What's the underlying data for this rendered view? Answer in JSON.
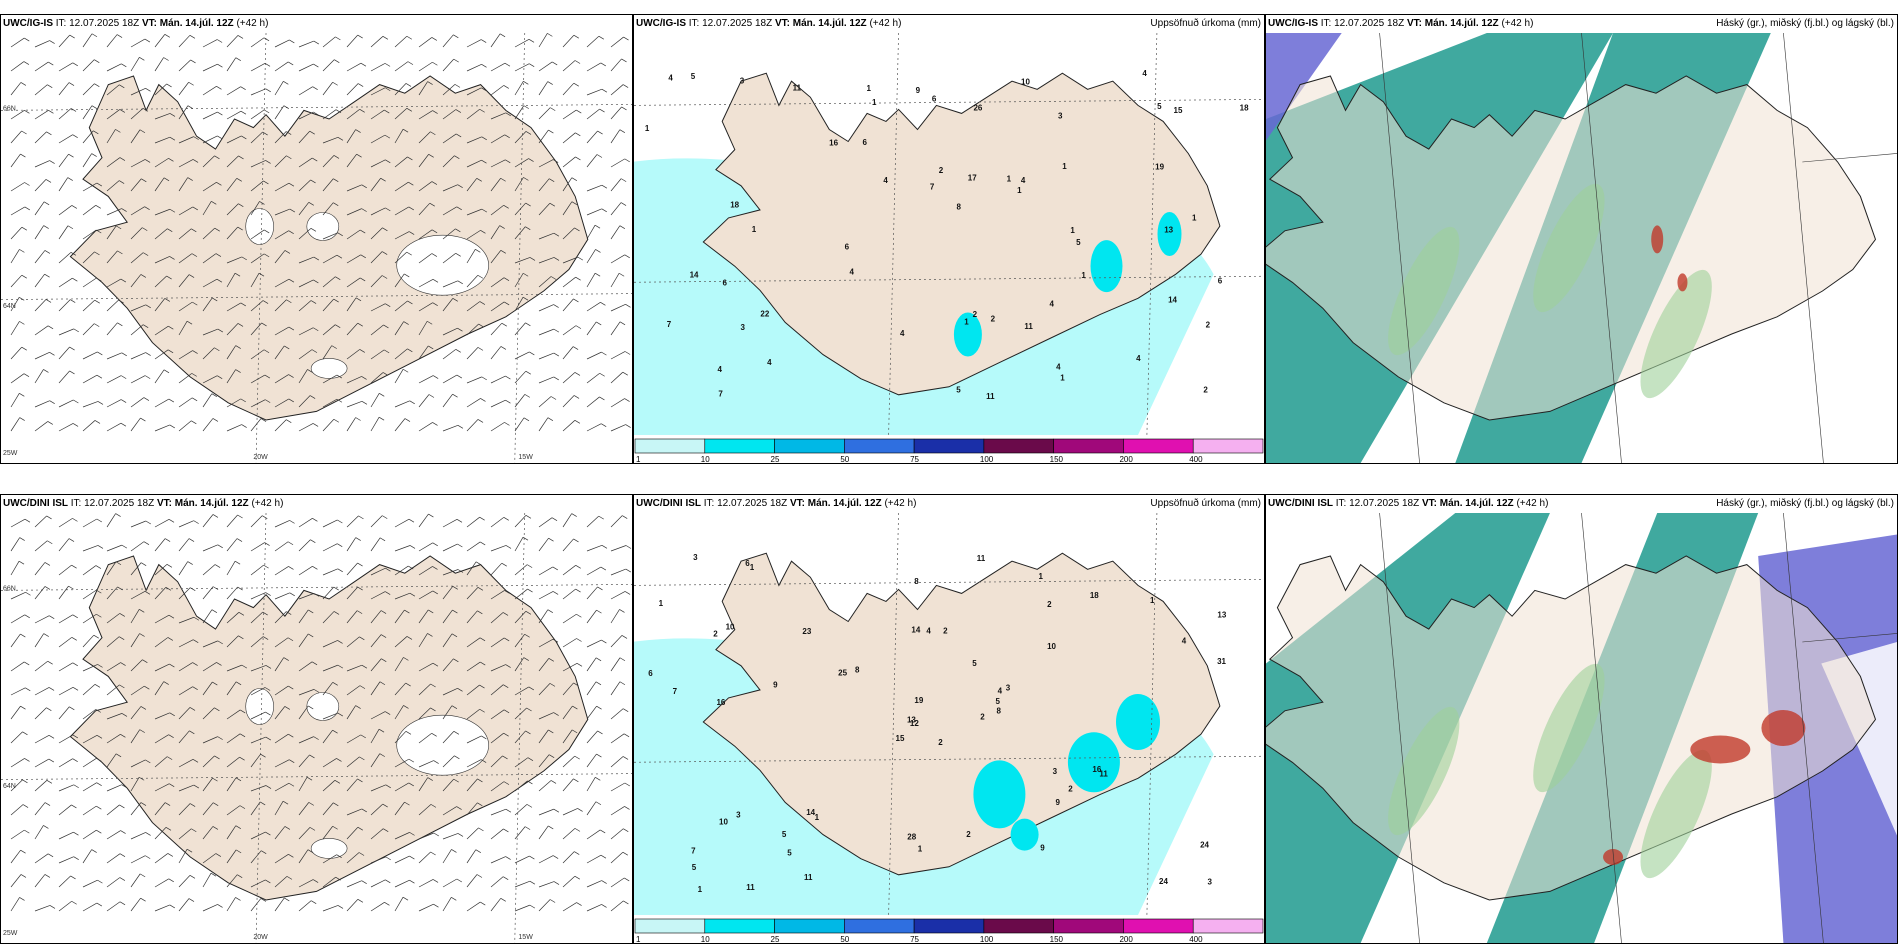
{
  "panels": [
    {
      "model": "UWC/IG-IS",
      "it": "IT: 12.07.2025 18Z",
      "vt": "VT: Mán. 14.júl. 12Z",
      "lead": "(+42 h)",
      "title": "",
      "type": "wind"
    },
    {
      "model": "UWC/IG-IS",
      "it": "IT: 12.07.2025 18Z",
      "vt": "VT: Mán. 14.júl. 12Z",
      "lead": "(+42 h)",
      "title": "Uppsöfnuð úrkoma (mm)",
      "type": "precip"
    },
    {
      "model": "UWC/IG-IS",
      "it": "IT: 12.07.2025 18Z",
      "vt": "VT: Mán. 14.júl. 12Z",
      "lead": "(+42 h)",
      "title": "Háský (gr.), miðský (fj.bl.) og lágský (bl.)",
      "type": "cloud"
    },
    {
      "model": "UWC/DINI ISL",
      "it": "IT: 12.07.2025 18Z",
      "vt": "VT: Mán. 14.júl. 12Z",
      "lead": "(+42 h)",
      "title": "",
      "type": "wind"
    },
    {
      "model": "UWC/DINI ISL",
      "it": "IT: 12.07.2025 18Z",
      "vt": "VT: Mán. 14.júl. 12Z",
      "lead": "(+42 h)",
      "title": "Uppsöfnuð úrkoma (mm)",
      "type": "precip"
    },
    {
      "model": "UWC/DINI ISL",
      "it": "IT: 12.07.2025 18Z",
      "vt": "VT: Mán. 14.júl. 12Z",
      "lead": "(+42 h)",
      "title": "Háský (gr.), miðský (fj.bl.) og lágský (bl.)",
      "type": "cloud"
    }
  ],
  "gridlabels": {
    "lon_20": "20W",
    "lon_15": "15W",
    "lat_66": "66N",
    "lat_64": "64N",
    "lon_25": "25W"
  },
  "precip_legend": {
    "ticks": [
      "1",
      "10",
      "25",
      "50",
      "75",
      "100",
      "150",
      "200",
      "400"
    ],
    "colors": [
      "#c8f6f6",
      "#00e6f0",
      "#00b8e6",
      "#2f6fe0",
      "#1a2fa8",
      "#6a0a4a",
      "#a0087a",
      "#e010b0",
      "#f5b0f0"
    ]
  },
  "precip_values_top": [
    "1",
    "1",
    "1",
    "2",
    "1",
    "1",
    "2",
    "4",
    "4",
    "7",
    "5",
    "6",
    "6",
    "7",
    "2",
    "2",
    "1",
    "1",
    "1",
    "4",
    "4",
    "4",
    "3",
    "11",
    "14",
    "5",
    "6",
    "4",
    "9",
    "11",
    "3",
    "4",
    "6",
    "8",
    "6",
    "4",
    "17",
    "22",
    "18",
    "26",
    "13",
    "10",
    "15",
    "16",
    "18",
    "14",
    "19",
    "11",
    "5",
    "4",
    "1",
    "3",
    "2",
    "1",
    "7",
    "4",
    "1",
    "5",
    "1",
    "4"
  ],
  "precip_values_bottom": [
    "2",
    "2",
    "12",
    "7",
    "4",
    "1",
    "1",
    "2",
    "2",
    "2",
    "1",
    "3",
    "16",
    "13",
    "15",
    "10",
    "11",
    "14",
    "5",
    "3",
    "8",
    "5",
    "5",
    "4",
    "3",
    "11",
    "10",
    "8",
    "7",
    "3",
    "31",
    "13",
    "28",
    "19",
    "23",
    "18",
    "14",
    "24",
    "24",
    "16",
    "11",
    "25",
    "9",
    "9",
    "11",
    "6",
    "5",
    "1",
    "1",
    "8",
    "10",
    "4",
    "1",
    "2",
    "9",
    "5",
    "6",
    "3",
    "2",
    "1"
  ],
  "colors": {
    "land": "#f0e2d4",
    "sea": "#ffffff",
    "precip_light": "#b6fafa",
    "precip_mid": "#00e6f0",
    "cloud_high": "#1e9a8e",
    "cloud_mid": "#9fd19a",
    "cloud_low": "#6767d4",
    "cloud_red": "#c0392b"
  }
}
